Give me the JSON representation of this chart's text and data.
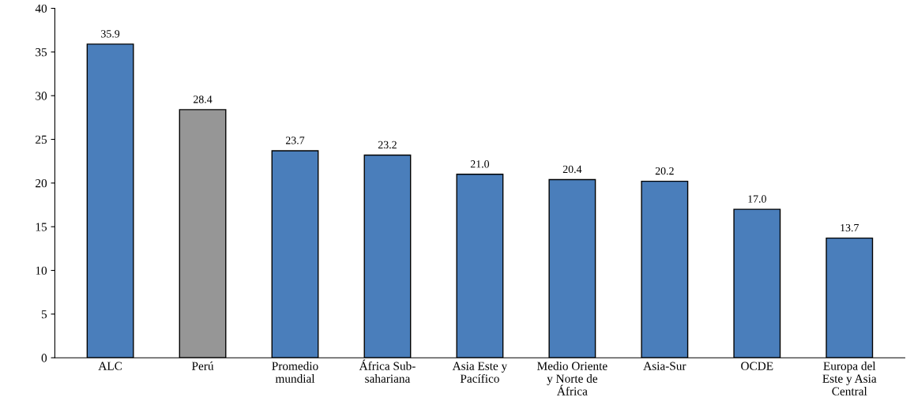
{
  "chart_data": {
    "type": "bar",
    "categories": [
      "ALC",
      "Perú",
      "Promedio\nmundial",
      "África Sub-\nsahariana",
      "Asia Este y\nPacífico",
      "Medio Oriente\ny Norte de\nÁfrica",
      "Asia-Sur",
      "OCDE",
      "Europa del\nEste y Asia\nCentral"
    ],
    "values": [
      35.9,
      28.4,
      23.7,
      23.2,
      21.0,
      20.4,
      20.2,
      17.0,
      13.7
    ],
    "colors": [
      "#4a7ebb",
      "#969696",
      "#4a7ebb",
      "#4a7ebb",
      "#4a7ebb",
      "#4a7ebb",
      "#4a7ebb",
      "#4a7ebb",
      "#4a7ebb"
    ],
    "value_labels": [
      "35.9",
      "28.4",
      "23.7",
      "23.2",
      "21.0",
      "20.4",
      "20.2",
      "17.0",
      "13.7"
    ],
    "ylim": [
      0,
      40
    ],
    "yticks": [
      0,
      5,
      10,
      15,
      20,
      25,
      30,
      35,
      40
    ],
    "grid": false,
    "legend": false
  }
}
